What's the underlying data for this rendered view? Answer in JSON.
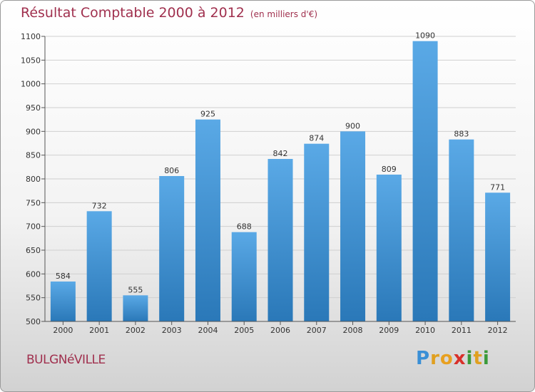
{
  "header": {
    "title": "Résultat Comptable 2000 à 2012",
    "subtitle": "(en milliers d'€)"
  },
  "footer": {
    "commune": "BULGNéVILLE",
    "logo_letters": [
      "P",
      "r",
      "o",
      "x",
      "i",
      "t",
      "i"
    ],
    "logo_colors": [
      "#3a8fd6",
      "#e0a020",
      "#e8a020",
      "#d8302a",
      "#3a9a3a",
      "#e0a020",
      "#3a9a3a"
    ]
  },
  "chart_data": {
    "type": "bar",
    "categories": [
      "2000",
      "2001",
      "2002",
      "2003",
      "2004",
      "2005",
      "2006",
      "2007",
      "2008",
      "2009",
      "2010",
      "2011",
      "2012"
    ],
    "values": [
      584,
      732,
      555,
      806,
      925,
      688,
      842,
      874,
      900,
      809,
      1090,
      883,
      771
    ],
    "ylim": [
      500,
      1100
    ],
    "yticks": [
      500,
      550,
      600,
      650,
      700,
      750,
      800,
      850,
      900,
      950,
      1000,
      1050,
      1100
    ],
    "grid": true,
    "bar_color_top": "#5aa9e6",
    "bar_color_bottom": "#2a78b8"
  }
}
